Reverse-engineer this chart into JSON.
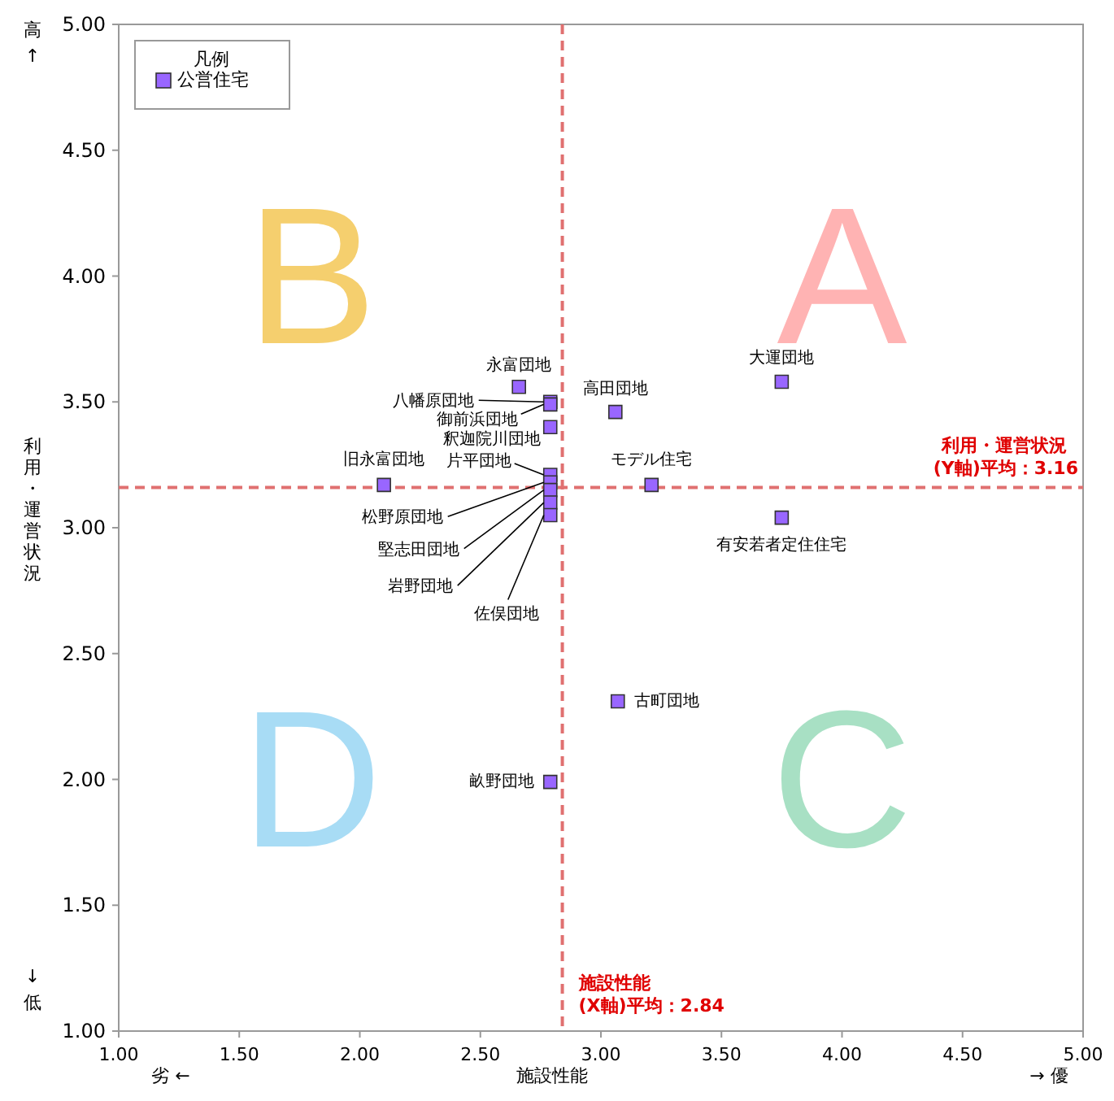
{
  "chart_data": {
    "type": "scatter",
    "xlabel": "施設性能",
    "ylabel": "利用・運営状況",
    "legend_title": "凡例",
    "legend": "top left",
    "grid": false,
    "marker": "square",
    "xlim": [
      1,
      5
    ],
    "xticks": [
      {
        "value": 1,
        "label": "1.00"
      },
      {
        "value": 1.5,
        "label": "1.50"
      },
      {
        "value": 2,
        "label": "2.00"
      },
      {
        "value": 2.5,
        "label": "2.50"
      },
      {
        "value": 3,
        "label": "3.00"
      },
      {
        "value": 3.5,
        "label": "3.50"
      },
      {
        "value": 4,
        "label": "4.00"
      },
      {
        "value": 4.5,
        "label": "4.50"
      },
      {
        "value": 5,
        "label": "5.00"
      }
    ],
    "ylim": [
      1,
      5
    ],
    "yticks": [
      {
        "value": 1,
        "label": "1.00"
      },
      {
        "value": 1.5,
        "label": "1.50"
      },
      {
        "value": 2,
        "label": "2.00"
      },
      {
        "value": 2.5,
        "label": "2.50"
      },
      {
        "value": 3,
        "label": "3.00"
      },
      {
        "value": 3.5,
        "label": "3.50"
      },
      {
        "value": 4,
        "label": "4.00"
      },
      {
        "value": 4.5,
        "label": "4.50"
      },
      {
        "value": 5,
        "label": "5.00"
      }
    ],
    "series": [
      {
        "name": "公営住宅",
        "color": "#9966ff",
        "x": [
          2.66,
          2.79,
          2.79,
          2.79,
          2.1,
          2.79,
          2.79,
          2.79,
          2.79,
          2.79,
          3.06,
          3.21,
          3.75,
          3.75,
          3.07,
          2.79
        ],
        "values": [
          3.56,
          3.5,
          3.49,
          3.4,
          3.17,
          3.21,
          3.18,
          3.15,
          3.1,
          3.05,
          3.46,
          3.17,
          3.58,
          3.04,
          2.31,
          1.99
        ]
      }
    ],
    "ref_lines": [
      {
        "axis": "x",
        "value": 2.84,
        "label": "施設性能\n(X軸)平均：2.84",
        "color": "#e07070",
        "line_style": "dashed"
      },
      {
        "axis": "y",
        "value": 3.16,
        "label": "利用・運営状況\n(Y軸)平均：3.16",
        "color": "#e07070",
        "line_style": "dashed"
      }
    ],
    "annotations": [
      "A",
      "B",
      "C",
      "D",
      "高 ↑",
      "↓ 低",
      "劣 ←",
      "→ 優",
      {
        "text": "永富団地",
        "x": 2.66,
        "y": 3.56
      },
      {
        "text": "八幡原団地",
        "x": 2.79,
        "y": 3.5
      },
      {
        "text": "御前浜団地",
        "x": 2.79,
        "y": 3.49
      },
      {
        "text": "釈迦院川団地",
        "x": 2.79,
        "y": 3.4
      },
      {
        "text": "旧永富団地",
        "x": 2.1,
        "y": 3.17
      },
      {
        "text": "片平団地",
        "x": 2.79,
        "y": 3.21
      },
      {
        "text": "松野原団地",
        "x": 2.79,
        "y": 3.18
      },
      {
        "text": "堅志田団地",
        "x": 2.79,
        "y": 3.15
      },
      {
        "text": "岩野団地",
        "x": 2.79,
        "y": 3.1
      },
      {
        "text": "佐俣団地",
        "x": 2.79,
        "y": 3.05
      },
      {
        "text": "高田団地",
        "x": 3.06,
        "y": 3.46
      },
      {
        "text": "モデル住宅",
        "x": 3.21,
        "y": 3.17
      },
      {
        "text": "大運団地",
        "x": 3.75,
        "y": 3.58
      },
      {
        "text": "有安若者定住住宅",
        "x": 3.75,
        "y": 3.04
      },
      {
        "text": "古町団地",
        "x": 3.07,
        "y": 2.31
      },
      {
        "text": "畝野団地",
        "x": 2.79,
        "y": 1.99
      }
    ]
  }
}
